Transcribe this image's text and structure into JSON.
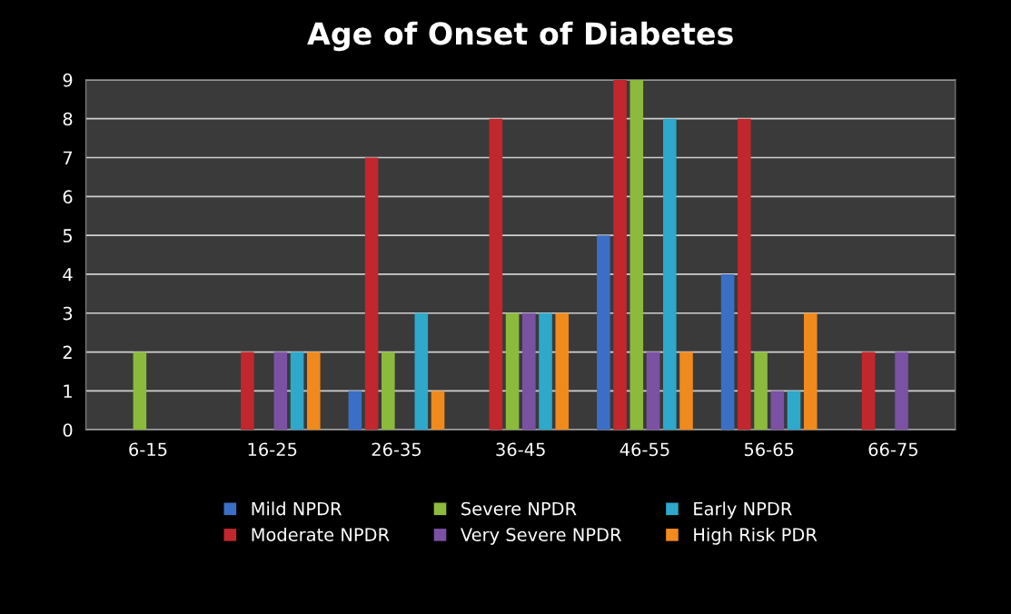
{
  "chart_data": {
    "type": "bar",
    "title": "Age of Onset of Diabetes",
    "categories": [
      "6-15",
      "16-25",
      "26-35",
      "36-45",
      "46-55",
      "56-65",
      "66-75"
    ],
    "series": [
      {
        "name": "Mild NPDR",
        "color": "#3b6fc6",
        "values": [
          0,
          0,
          1,
          0,
          5,
          4,
          0
        ]
      },
      {
        "name": "Moderate NPDR",
        "color": "#c1272d",
        "values": [
          0,
          2,
          7,
          8,
          9,
          8,
          2
        ]
      },
      {
        "name": "Severe NPDR",
        "color": "#8cba3c",
        "values": [
          2,
          0,
          2,
          3,
          9,
          2,
          0
        ]
      },
      {
        "name": "Very Severe NPDR",
        "color": "#7b52a3",
        "values": [
          0,
          2,
          0,
          3,
          2,
          1,
          2
        ]
      },
      {
        "name": "Early NPDR",
        "color": "#2ea8cb",
        "values": [
          0,
          2,
          3,
          3,
          8,
          1,
          0
        ]
      },
      {
        "name": "High Risk PDR",
        "color": "#f08a1d",
        "values": [
          0,
          2,
          1,
          3,
          2,
          3,
          0
        ]
      }
    ],
    "ylim": [
      0,
      9
    ],
    "yticks": [
      0,
      1,
      2,
      3,
      4,
      5,
      6,
      7,
      8,
      9
    ],
    "grid": "y",
    "legend": "bottom"
  }
}
